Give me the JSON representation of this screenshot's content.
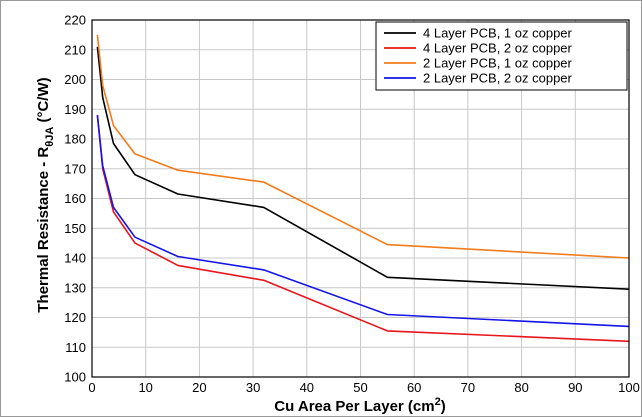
{
  "chart_data": {
    "type": "line",
    "xlabel": "Cu Area Per Layer (cm",
    "xlabel_sup": "2",
    "xlabel_end": ")",
    "ylabel_pre": "Thermal Resistance - R",
    "ylabel_sub": "θJA",
    "ylabel_post": " (°C/W)",
    "xlim": [
      0,
      100
    ],
    "ylim": [
      100,
      220
    ],
    "xticks": [
      0,
      10,
      20,
      30,
      40,
      50,
      60,
      70,
      80,
      90,
      100
    ],
    "yticks": [
      100,
      110,
      120,
      130,
      140,
      150,
      160,
      170,
      180,
      190,
      200,
      210,
      220
    ],
    "grid": true,
    "legend_position": "top-right",
    "series": [
      {
        "name": "4 Layer PCB, 1 oz copper",
        "color": "#000000",
        "points": [
          [
            1,
            211
          ],
          [
            2,
            194
          ],
          [
            4,
            178.5
          ],
          [
            8,
            168
          ],
          [
            16,
            161.5
          ],
          [
            32,
            157
          ],
          [
            55,
            133.5
          ],
          [
            100,
            129.5
          ]
        ]
      },
      {
        "name": "4 Layer PCB, 2 oz copper",
        "color": "#e8141c",
        "points": [
          [
            1,
            188
          ],
          [
            2,
            170
          ],
          [
            4,
            155.5
          ],
          [
            8,
            145
          ],
          [
            16,
            137.5
          ],
          [
            32,
            132.5
          ],
          [
            55,
            115.5
          ],
          [
            100,
            112
          ]
        ]
      },
      {
        "name": "2 Layer PCB, 1 oz copper",
        "color": "#f07c1c",
        "points": [
          [
            1,
            215
          ],
          [
            2,
            198
          ],
          [
            4,
            184.5
          ],
          [
            8,
            175
          ],
          [
            16,
            169.5
          ],
          [
            32,
            165.5
          ],
          [
            55,
            144.5
          ],
          [
            100,
            140
          ]
        ]
      },
      {
        "name": "2 Layer PCB, 2 oz copper",
        "color": "#1414e8",
        "points": [
          [
            1,
            188
          ],
          [
            2,
            171
          ],
          [
            4,
            157
          ],
          [
            8,
            147
          ],
          [
            16,
            140.5
          ],
          [
            32,
            136
          ],
          [
            55,
            121
          ],
          [
            100,
            117
          ]
        ]
      }
    ]
  }
}
